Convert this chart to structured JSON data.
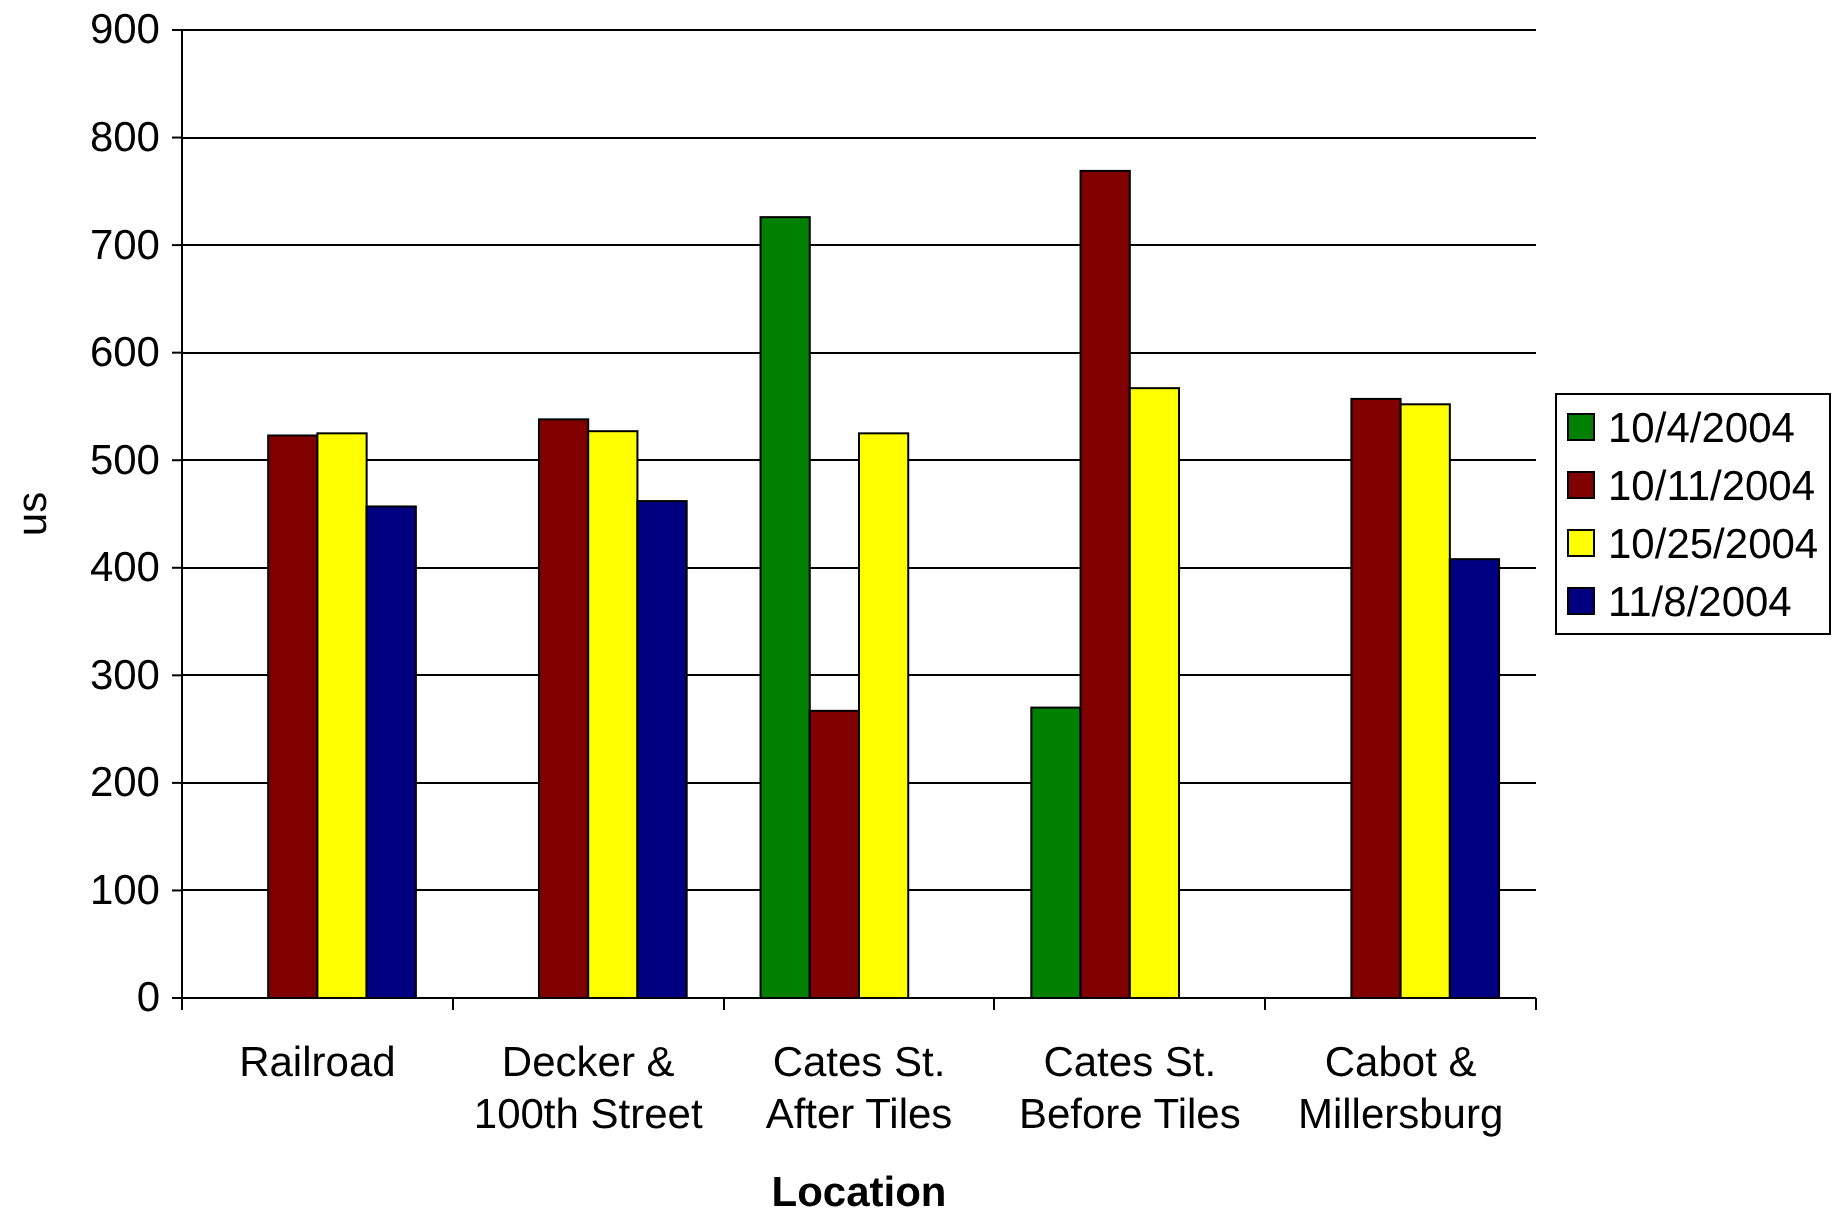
{
  "chart_data": {
    "type": "bar",
    "xlabel": "Location",
    "ylabel": "us",
    "categories": [
      "Railroad",
      "Decker & 100th Street",
      "Cates St. After Tiles",
      "Cates St. Before Tiles",
      "Cabot & Millersburg"
    ],
    "series": [
      {
        "name": "10/4/2004",
        "color": "#008000",
        "values": [
          null,
          null,
          726,
          270,
          null
        ]
      },
      {
        "name": "10/11/2004",
        "color": "#800000",
        "values": [
          523,
          538,
          267,
          769,
          557
        ]
      },
      {
        "name": "10/25/2004",
        "color": "#ffff00",
        "values": [
          525,
          527,
          525,
          567,
          552
        ]
      },
      {
        "name": "11/8/2004",
        "color": "#000080",
        "values": [
          457,
          462,
          null,
          null,
          408
        ]
      }
    ],
    "ylim": [
      0,
      900
    ],
    "yticks": [
      0,
      100,
      200,
      300,
      400,
      500,
      600,
      700,
      800,
      900
    ],
    "grid": "y",
    "legend": "right"
  }
}
